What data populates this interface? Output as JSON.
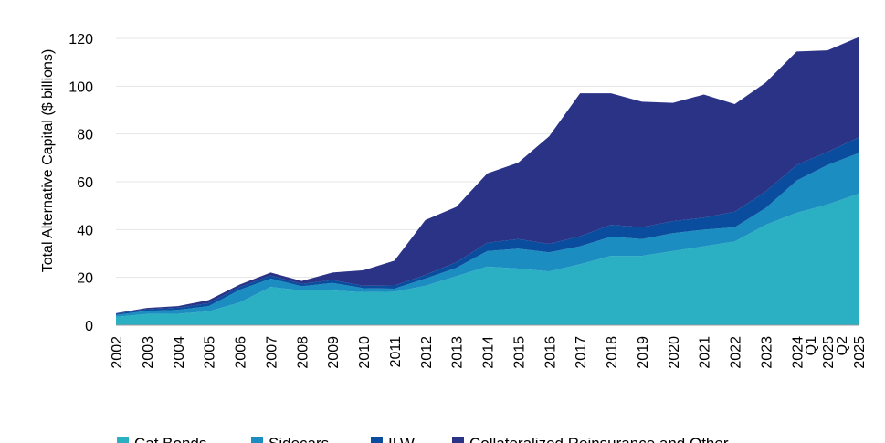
{
  "chart_data": {
    "type": "area",
    "stacked": true,
    "ylabel": "Total Alternative Capital ($ billions)",
    "ylim": [
      0,
      120
    ],
    "yticks": [
      0,
      20,
      40,
      60,
      80,
      100,
      120
    ],
    "grid": "horizontal",
    "legend_position": "bottom",
    "categories": [
      "2002",
      "2003",
      "2004",
      "2005",
      "2006",
      "2007",
      "2008",
      "2009",
      "2010",
      "2011",
      "2012",
      "2013",
      "2014",
      "2015",
      "2016",
      "2017",
      "2018",
      "2019",
      "2020",
      "2021",
      "2022",
      "2023",
      "2024",
      "Q1 2025",
      "Q2 2025"
    ],
    "series": [
      {
        "name": "Cat Bonds",
        "color": "#2bb0c3",
        "values": [
          3.5,
          4.7,
          4.8,
          5.8,
          9.5,
          16,
          14.5,
          14.5,
          13.8,
          14,
          16.5,
          20.5,
          24.5,
          23.7,
          22.5,
          25.5,
          29,
          29,
          31,
          33,
          35,
          42,
          47,
          50.5,
          55
        ]
      },
      {
        "name": "Sidecars",
        "color": "#1b8dc1",
        "values": [
          0.8,
          1.3,
          1.6,
          2.2,
          5.3,
          3.5,
          1.8,
          3.2,
          1.7,
          1.3,
          3.0,
          3.5,
          6.5,
          8.3,
          8.0,
          7.5,
          8.0,
          7.0,
          7.5,
          7.0,
          6.0,
          7.0,
          13.5,
          16.5,
          17.0
        ]
      },
      {
        "name": "ILW",
        "color": "#0a4c9d",
        "values": [
          0.5,
          0.7,
          0.9,
          1.2,
          1.2,
          1.3,
          1.0,
          1.2,
          1.0,
          1.3,
          1.5,
          2.3,
          3.5,
          4.0,
          3.5,
          4.2,
          5.0,
          5.0,
          5.0,
          5.0,
          6.5,
          7.0,
          6.5,
          5.5,
          6.5
        ]
      },
      {
        "name": "Collateralized Reinsurance and Other",
        "color": "#2a3386",
        "values": [
          0.2,
          0.5,
          0.7,
          1.3,
          1.0,
          1.2,
          1.2,
          3.1,
          6.5,
          10.4,
          23.0,
          23.2,
          29.0,
          32.0,
          45.0,
          59.8,
          55.0,
          52.5,
          49.5,
          51.5,
          45.0,
          45.5,
          47.5,
          42.5,
          42.0
        ]
      }
    ]
  }
}
